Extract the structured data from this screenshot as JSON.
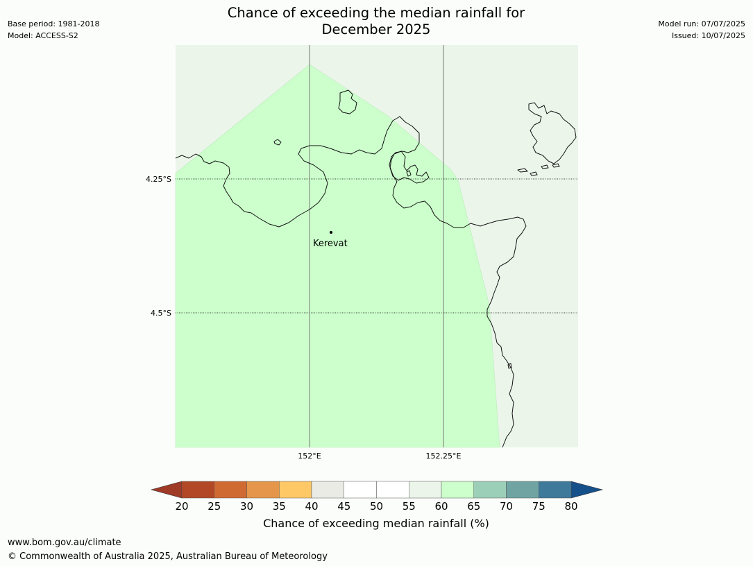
{
  "header": {
    "title_line1": "Chance of exceeding the median rainfall for",
    "title_line2": "December 2025",
    "base_period": "Base period: 1981-2018",
    "model": "Model: ACCESS-S2",
    "model_run": "Model run: 07/07/2025",
    "issued": "Issued: 10/07/2025"
  },
  "map": {
    "lat_labels": [
      "4.25°S",
      "4.5°S"
    ],
    "lon_labels": [
      "152°E",
      "152.25°E"
    ],
    "place": {
      "name": "Kerevat"
    },
    "colors": {
      "background_category": "#ebf5ea",
      "main_category": "#ccffcc",
      "coast": "#000000",
      "gridline": "#777777"
    }
  },
  "colorbar": {
    "label": "Chance of exceeding median rainfall (%)",
    "ticks": [
      "20",
      "25",
      "30",
      "35",
      "40",
      "45",
      "50",
      "55",
      "60",
      "65",
      "70",
      "75",
      "80"
    ],
    "under_color": "#9e3a26",
    "over_color": "#15508a",
    "colors": [
      "#b24826",
      "#d06a33",
      "#e5964a",
      "#fec867",
      "#ebebe6",
      "#ffffff",
      "#ffffff",
      "#ebf5ea",
      "#ccffcc",
      "#9ccfb8",
      "#6fa4a3",
      "#3f7a9b"
    ]
  },
  "footer": {
    "url": "www.bom.gov.au/climate",
    "copyright": "© Commonwealth of Australia 2025, Australian Bureau of Meteorology"
  }
}
